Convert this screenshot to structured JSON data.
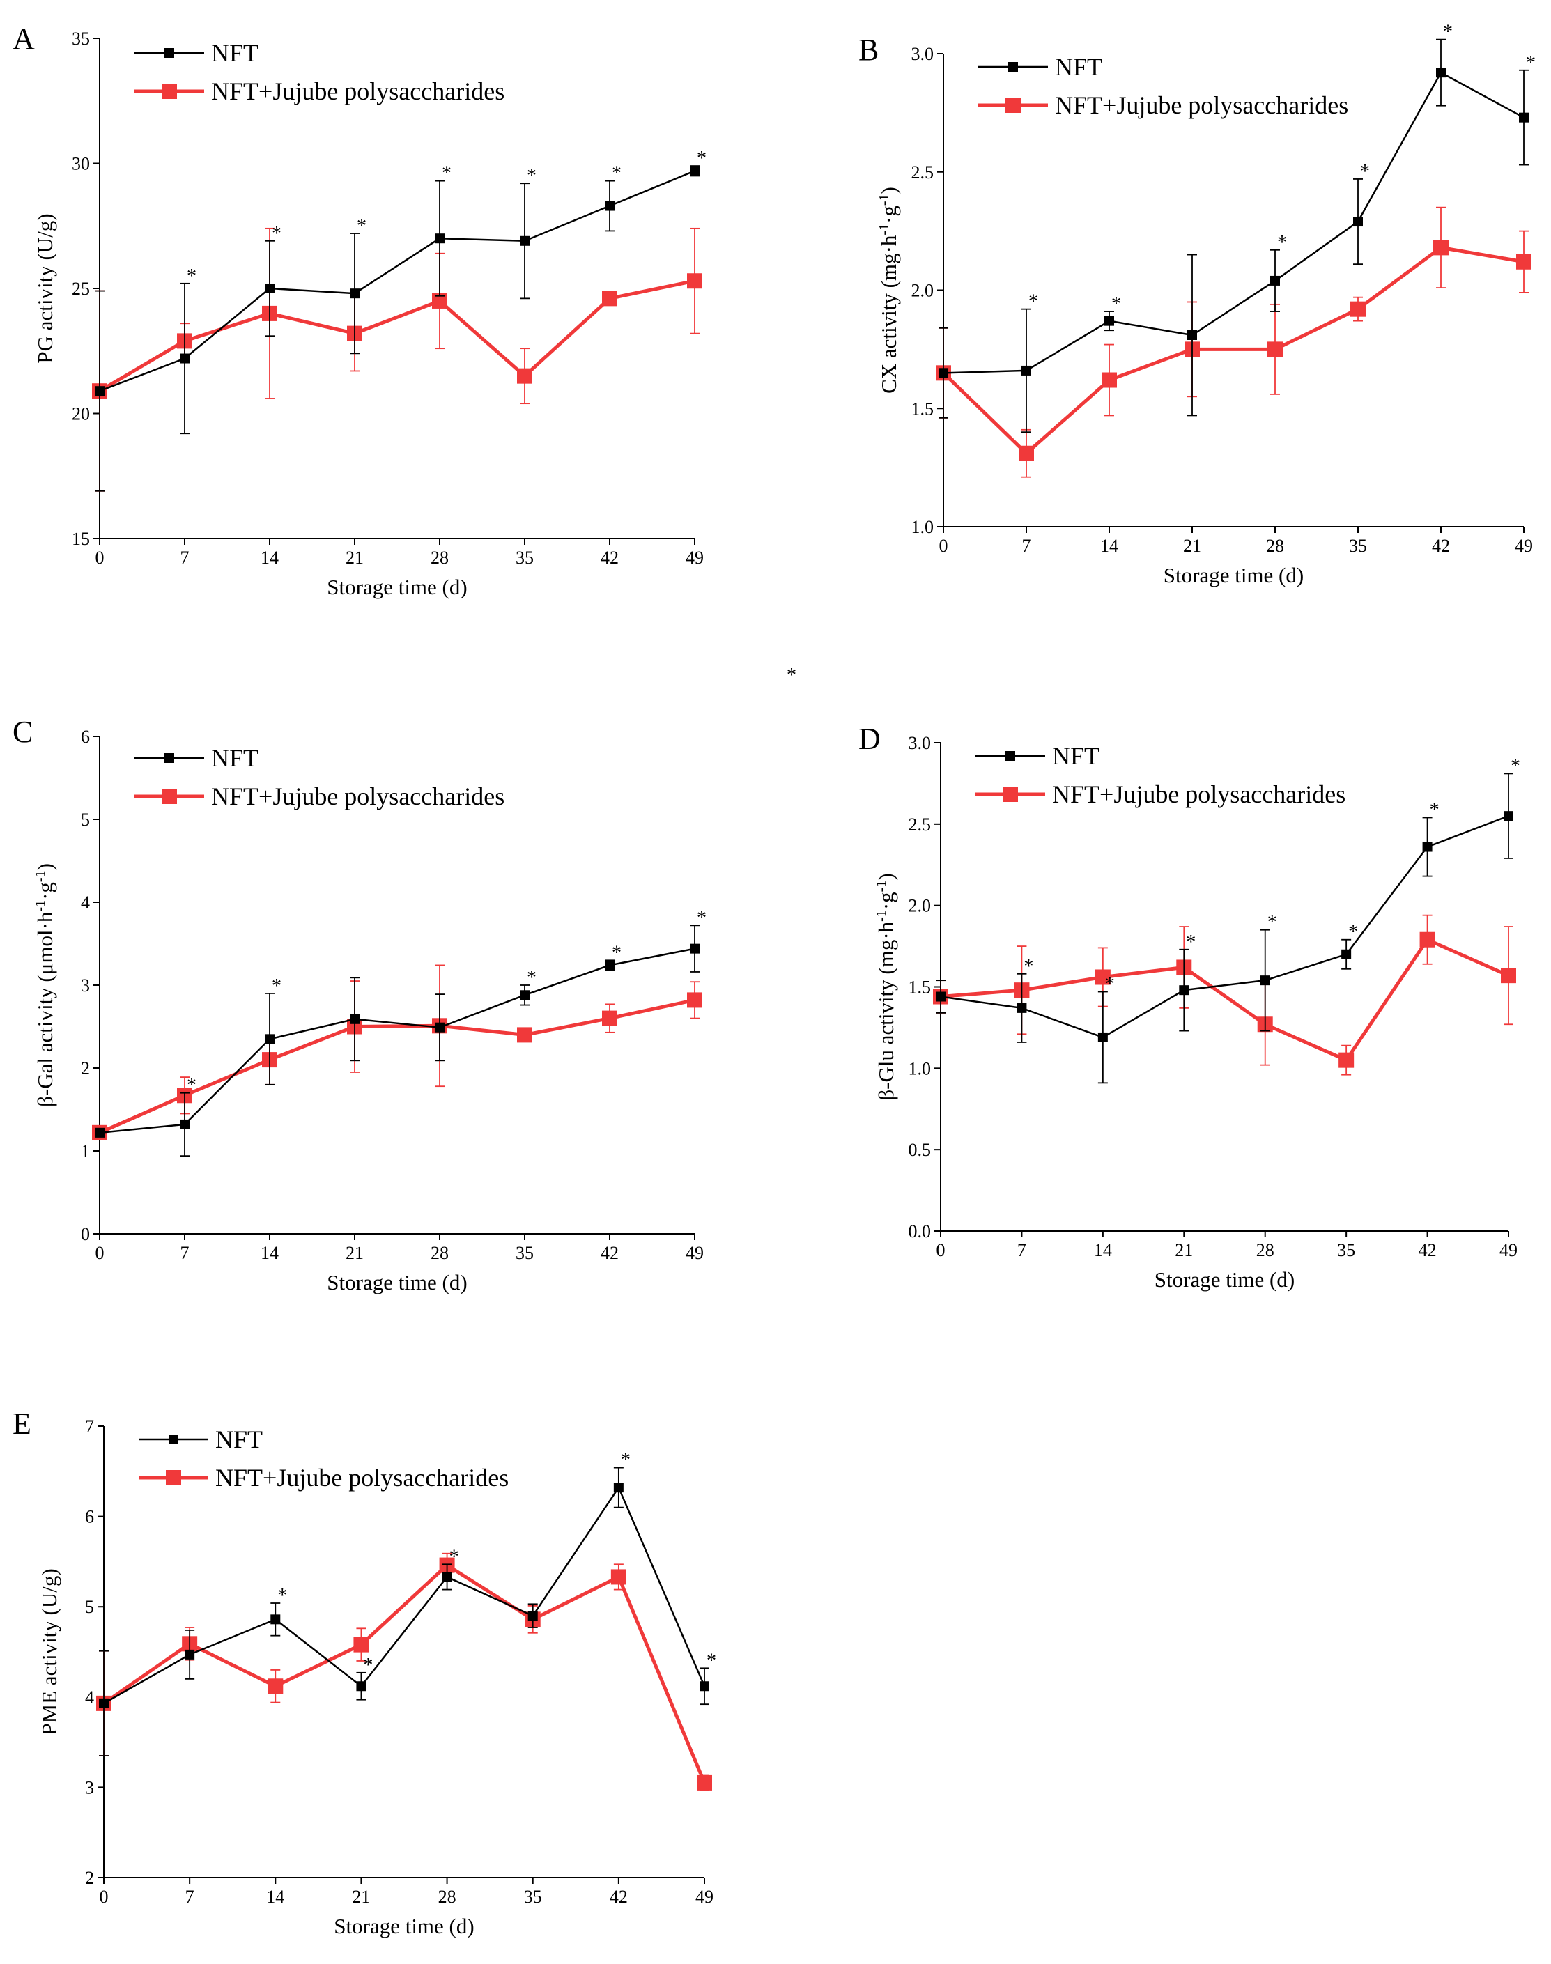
{
  "stray_mark": "*",
  "series_styles": {
    "NFT": {
      "color": "#000000"
    },
    "NFT+Jujube polysaccharides": {
      "color": "#f0393a"
    }
  },
  "chart_data": [
    {
      "panel": "A",
      "type": "line",
      "xlabel": "Storage time (d)",
      "ylabel": "PG activity (U/g)",
      "x": [
        0,
        7,
        14,
        21,
        28,
        35,
        42,
        49
      ],
      "xlim": [
        0,
        49
      ],
      "ylim": [
        15,
        35
      ],
      "yticks": [
        15,
        20,
        25,
        30,
        35
      ],
      "y_decimals": 0,
      "legend_position": "top-left",
      "series": [
        {
          "name": "NFT",
          "values": [
            20.9,
            22.2,
            25.0,
            24.8,
            27.0,
            26.9,
            28.3,
            29.7
          ],
          "errors": [
            4.0,
            3.0,
            1.9,
            2.4,
            2.3,
            2.3,
            1.0,
            0.2
          ]
        },
        {
          "name": "NFT+Jujube polysaccharides",
          "values": [
            20.9,
            22.9,
            24.0,
            23.2,
            24.5,
            21.5,
            24.6,
            25.3
          ],
          "errors": [
            4.0,
            0.7,
            3.4,
            1.5,
            1.9,
            1.1,
            0.1,
            2.1
          ]
        }
      ],
      "significance": [
        "",
        "*",
        "*",
        "*",
        "*",
        "*",
        "*",
        "*"
      ]
    },
    {
      "panel": "B",
      "type": "line",
      "xlabel": "Storage time (d)",
      "ylabel": "CX activity (mg·h-1·g-1)",
      "x": [
        0,
        7,
        14,
        21,
        28,
        35,
        42,
        49
      ],
      "xlim": [
        0,
        49
      ],
      "ylim": [
        1.0,
        3.0
      ],
      "yticks": [
        1.0,
        1.5,
        2.0,
        2.5,
        3.0
      ],
      "y_decimals": 1,
      "legend_position": "top-left",
      "series": [
        {
          "name": "NFT",
          "values": [
            1.65,
            1.66,
            1.87,
            1.81,
            2.04,
            2.29,
            2.92,
            2.73
          ],
          "errors": [
            0.19,
            0.26,
            0.04,
            0.34,
            0.13,
            0.18,
            0.14,
            0.2
          ]
        },
        {
          "name": "NFT+Jujube polysaccharides",
          "values": [
            1.65,
            1.31,
            1.62,
            1.75,
            1.75,
            1.92,
            2.18,
            2.12
          ],
          "errors": [
            0.19,
            0.1,
            0.15,
            0.2,
            0.19,
            0.05,
            0.17,
            0.13
          ]
        }
      ],
      "significance": [
        "",
        "*",
        "*",
        "",
        "*",
        "*",
        "*",
        "*"
      ]
    },
    {
      "panel": "C",
      "type": "line",
      "xlabel": "Storage time (d)",
      "ylabel": "β-Gal activity (μmol·h-1·g-1)",
      "x": [
        0,
        7,
        14,
        21,
        28,
        35,
        42,
        49
      ],
      "xlim": [
        0,
        49
      ],
      "ylim": [
        0,
        6
      ],
      "yticks": [
        0,
        1,
        2,
        3,
        4,
        5,
        6
      ],
      "y_decimals": 0,
      "legend_position": "top-left",
      "series": [
        {
          "name": "NFT",
          "values": [
            1.22,
            1.32,
            2.35,
            2.59,
            2.49,
            2.88,
            3.24,
            3.44
          ],
          "errors": [
            0.05,
            0.38,
            0.55,
            0.5,
            0.4,
            0.12,
            0.06,
            0.28
          ]
        },
        {
          "name": "NFT+Jujube polysaccharides",
          "values": [
            1.22,
            1.67,
            2.1,
            2.5,
            2.51,
            2.4,
            2.6,
            2.82
          ],
          "errors": [
            0.05,
            0.22,
            0.3,
            0.55,
            0.73,
            0.05,
            0.17,
            0.22
          ]
        }
      ],
      "significance": [
        "",
        "*",
        "*",
        "",
        "",
        "*",
        "*",
        "*"
      ]
    },
    {
      "panel": "D",
      "type": "line",
      "xlabel": "Storage time (d)",
      "ylabel": "β-Glu activity (mg·h-1·g-1)",
      "x": [
        0,
        7,
        14,
        21,
        28,
        35,
        42,
        49
      ],
      "xlim": [
        0,
        49
      ],
      "ylim": [
        0.0,
        3.0
      ],
      "yticks": [
        0.0,
        0.5,
        1.0,
        1.5,
        2.0,
        2.5,
        3.0
      ],
      "y_decimals": 1,
      "legend_position": "top-left",
      "series": [
        {
          "name": "NFT",
          "values": [
            1.44,
            1.37,
            1.19,
            1.48,
            1.54,
            1.7,
            2.36,
            2.55
          ],
          "errors": [
            0.1,
            0.21,
            0.28,
            0.25,
            0.31,
            0.09,
            0.18,
            0.26
          ]
        },
        {
          "name": "NFT+Jujube polysaccharides",
          "values": [
            1.44,
            1.48,
            1.56,
            1.62,
            1.27,
            1.05,
            1.79,
            1.57
          ],
          "errors": [
            0.1,
            0.27,
            0.18,
            0.25,
            0.25,
            0.09,
            0.15,
            0.3
          ]
        }
      ],
      "significance": [
        "",
        "*",
        "*",
        "*",
        "*",
        "*",
        "*",
        "*"
      ]
    },
    {
      "panel": "E",
      "type": "line",
      "xlabel": "Storage time (d)",
      "ylabel": "PME activity (U/g)",
      "x": [
        0,
        7,
        14,
        21,
        28,
        35,
        42,
        49
      ],
      "xlim": [
        0,
        49
      ],
      "ylim": [
        2,
        7
      ],
      "yticks": [
        2,
        3,
        4,
        5,
        6,
        7
      ],
      "y_decimals": 0,
      "legend_position": "top-left",
      "series": [
        {
          "name": "NFT",
          "values": [
            3.93,
            4.47,
            4.86,
            4.12,
            5.33,
            4.9,
            6.32,
            4.12
          ],
          "errors": [
            0.58,
            0.27,
            0.18,
            0.15,
            0.14,
            0.13,
            0.22,
            0.2
          ]
        },
        {
          "name": "NFT+Jujube polysaccharides",
          "values": [
            3.93,
            4.59,
            4.12,
            4.58,
            5.46,
            4.86,
            5.33,
            3.05
          ],
          "errors": [
            0.58,
            0.18,
            0.18,
            0.18,
            0.13,
            0.15,
            0.14,
            0.08
          ]
        }
      ],
      "significance": [
        "",
        "",
        "*",
        "*",
        "*",
        "",
        "*",
        "*"
      ]
    }
  ]
}
